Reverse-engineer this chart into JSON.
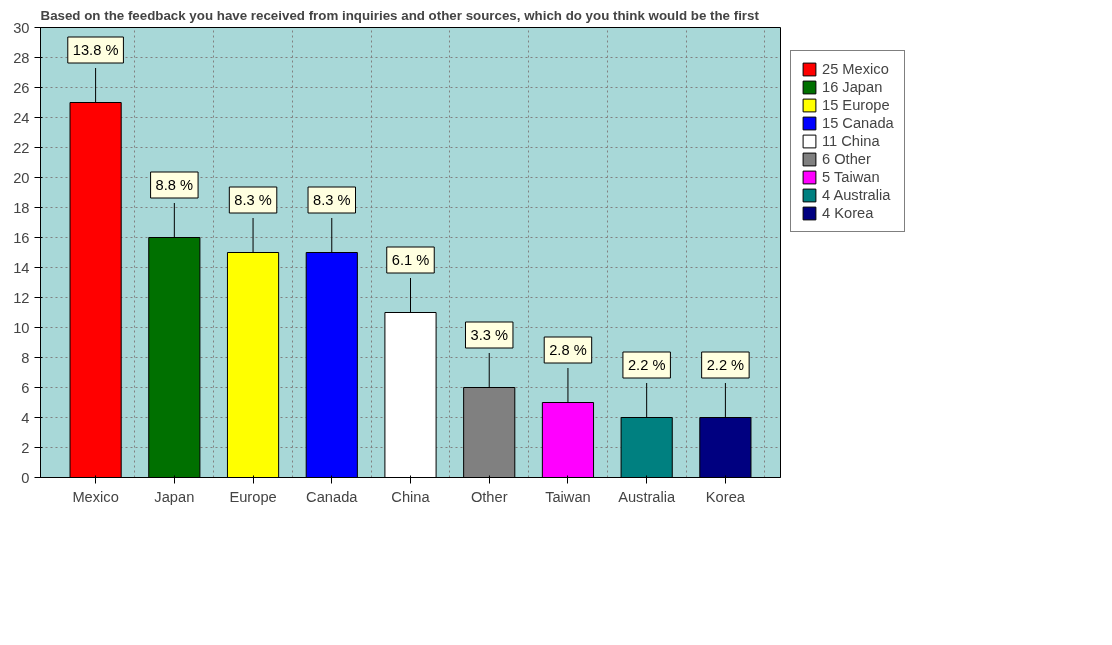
{
  "chart_data": {
    "type": "bar",
    "title": "Based on the feedback you have received from inquiries and other sources, which do you think would be the first",
    "categories": [
      "Mexico",
      "Japan",
      "Europe",
      "Canada",
      "China",
      "Other",
      "Taiwan",
      "Australia",
      "Korea"
    ],
    "stacked": true,
    "series": [
      {
        "name": "25 Mexico",
        "color": "#ff0000",
        "values": [
          25,
          null,
          null,
          null,
          null,
          null,
          null,
          null,
          null
        ]
      },
      {
        "name": "16 Japan",
        "color": "#007000",
        "values": [
          null,
          16,
          null,
          null,
          null,
          null,
          null,
          null,
          null
        ]
      },
      {
        "name": "15 Europe",
        "color": "#ffff00",
        "values": [
          null,
          null,
          15,
          null,
          null,
          null,
          null,
          null,
          null
        ]
      },
      {
        "name": "15 Canada",
        "color": "#0000ff",
        "values": [
          null,
          null,
          null,
          15,
          null,
          null,
          null,
          null,
          null
        ]
      },
      {
        "name": "11 China",
        "color": "#ffffff",
        "values": [
          null,
          null,
          null,
          null,
          11,
          null,
          null,
          null,
          null
        ]
      },
      {
        "name": "6 Other",
        "color": "#808080",
        "values": [
          null,
          null,
          null,
          null,
          null,
          6,
          null,
          null,
          null
        ]
      },
      {
        "name": "5 Taiwan",
        "color": "#ff00ff",
        "values": [
          null,
          null,
          null,
          null,
          null,
          null,
          5,
          null,
          null
        ]
      },
      {
        "name": "4 Australia",
        "color": "#008080",
        "values": [
          null,
          null,
          null,
          null,
          null,
          null,
          null,
          4,
          null
        ]
      },
      {
        "name": "4 Korea",
        "color": "#000080",
        "values": [
          null,
          null,
          null,
          null,
          null,
          null,
          null,
          null,
          4
        ]
      }
    ],
    "annotations": [
      {
        "text": "13.8 %",
        "x": "Mexico",
        "y": 25
      },
      {
        "text": "8.8 %",
        "x": "Japan",
        "y": 16
      },
      {
        "text": "8.3 %",
        "x": "Europe",
        "y": 15
      },
      {
        "text": "8.3 %",
        "x": "Canada",
        "y": 15
      },
      {
        "text": "6.1 %",
        "x": "China",
        "y": 11
      },
      {
        "text": "3.3 %",
        "x": "Other",
        "y": 6
      },
      {
        "text": "2.8 %",
        "x": "Taiwan",
        "y": 5
      },
      {
        "text": "2.2 %",
        "x": "Australia",
        "y": 4
      },
      {
        "text": "2.2 %",
        "x": "Korea",
        "y": 4
      }
    ],
    "ylim": [
      0,
      30
    ],
    "yticks": [
      0,
      2,
      4,
      6,
      8,
      10,
      12,
      14,
      16,
      18,
      20,
      22,
      24,
      26,
      28,
      30
    ],
    "grid": true,
    "legend": "top right"
  }
}
